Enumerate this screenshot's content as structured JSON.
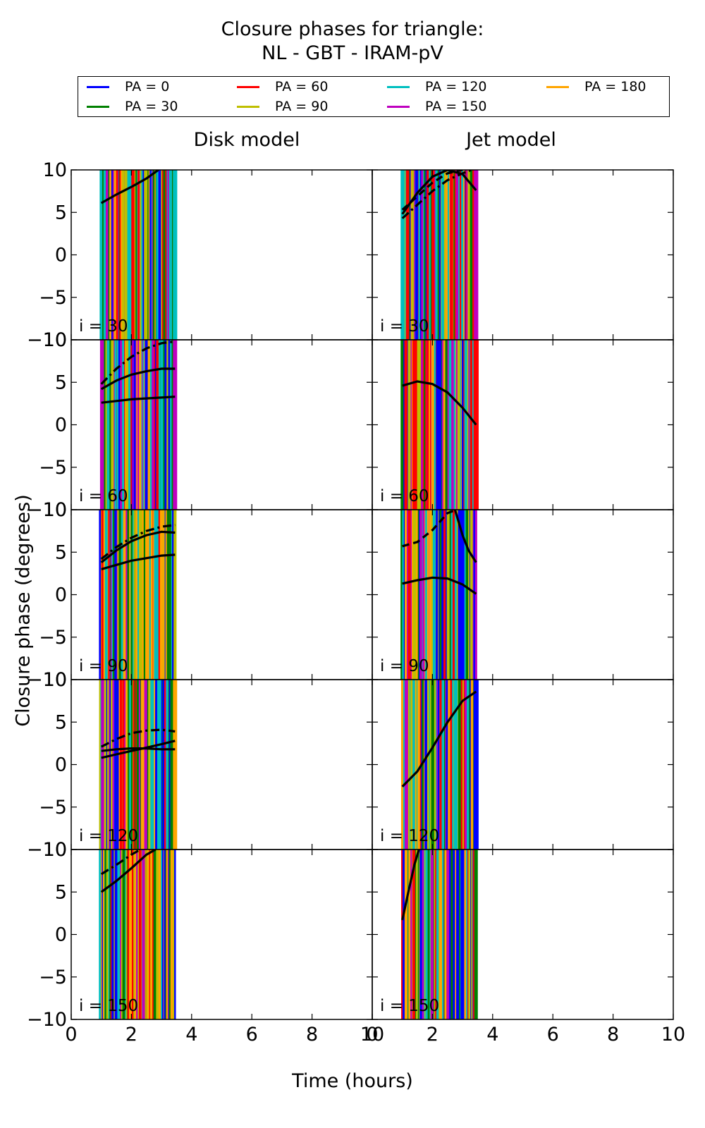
{
  "title_line1": "Closure phases for triangle:",
  "title_line2": "NL - GBT - IRAM-pV",
  "columns": [
    "Disk model",
    "Jet model"
  ],
  "xlabel": "Time (hours)",
  "ylabel": "Closure phase (degrees)",
  "legend": [
    {
      "label": "PA = 0",
      "color": "#0000ff"
    },
    {
      "label": "PA = 30",
      "color": "#008000"
    },
    {
      "label": "PA = 60",
      "color": "#ff0000"
    },
    {
      "label": "PA = 90",
      "color": "#bfbf00"
    },
    {
      "label": "PA = 120",
      "color": "#00bfbf"
    },
    {
      "label": "PA = 150",
      "color": "#bf00bf"
    },
    {
      "label": "PA = 180",
      "color": "#ffa500"
    }
  ],
  "chart_data": {
    "type": "line",
    "grid": false,
    "legend_position": "top",
    "xlim": [
      0,
      10
    ],
    "ylim": [
      -10,
      10
    ],
    "x_ticks": [
      0,
      2,
      4,
      6,
      8,
      10
    ],
    "y_ticks": [
      -10,
      -5,
      0,
      5,
      10
    ],
    "x_tick_labels": [
      "0",
      "2",
      "4",
      "6",
      "8",
      "10"
    ],
    "y_tick_labels": [
      "−10",
      "−5",
      "0",
      "5",
      "10"
    ],
    "time_range_hours": [
      1.0,
      3.45
    ],
    "rows": [
      "i = 30",
      "i = 60",
      "i = 90",
      "i = 120",
      "i = 150"
    ],
    "panels": [
      {
        "column": "Disk model",
        "row": "i = 30",
        "series": [
          {
            "style": "solid",
            "x": [
              1.0,
              1.5,
              2.0,
              2.5,
              2.9
            ],
            "y": [
              6.1,
              7.1,
              8.0,
              9.0,
              10.0
            ]
          }
        ]
      },
      {
        "column": "Jet model",
        "row": "i = 30",
        "series": [
          {
            "style": "solid",
            "x": [
              1.0,
              1.5,
              2.0,
              2.5,
              3.0,
              3.45
            ],
            "y": [
              4.8,
              7.3,
              9.2,
              10.0,
              9.5,
              7.6
            ]
          },
          {
            "style": "dashdot",
            "x": [
              1.0,
              1.5,
              2.0,
              2.5,
              3.0,
              3.3
            ],
            "y": [
              4.3,
              5.9,
              7.5,
              8.8,
              9.6,
              10.0
            ]
          },
          {
            "style": "dashed",
            "x": [
              1.0,
              1.5,
              2.0,
              2.5,
              3.0
            ],
            "y": [
              5.3,
              6.9,
              8.5,
              9.6,
              10.0
            ]
          }
        ]
      },
      {
        "column": "Disk model",
        "row": "i = 60",
        "series": [
          {
            "style": "solid",
            "x": [
              1.0,
              1.5,
              2.0,
              2.5,
              3.0,
              3.45
            ],
            "y": [
              2.6,
              2.8,
              3.0,
              3.1,
              3.2,
              3.3
            ]
          },
          {
            "style": "solid",
            "x": [
              1.0,
              1.5,
              2.0,
              2.5,
              3.0,
              3.45
            ],
            "y": [
              4.2,
              5.2,
              5.9,
              6.3,
              6.6,
              6.6
            ]
          },
          {
            "style": "dashdot",
            "x": [
              1.0,
              1.5,
              2.0,
              2.5,
              3.0,
              3.45
            ],
            "y": [
              4.8,
              6.6,
              8.0,
              9.0,
              9.6,
              9.8
            ]
          }
        ]
      },
      {
        "column": "Jet model",
        "row": "i = 60",
        "series": [
          {
            "style": "solid",
            "x": [
              1.0,
              1.5,
              2.0,
              2.5,
              3.0,
              3.45
            ],
            "y": [
              4.6,
              5.1,
              4.8,
              3.8,
              2.0,
              0.0
            ]
          }
        ]
      },
      {
        "column": "Disk model",
        "row": "i = 90",
        "series": [
          {
            "style": "solid",
            "x": [
              1.0,
              1.5,
              2.0,
              2.5,
              3.0,
              3.45
            ],
            "y": [
              3.0,
              3.5,
              4.0,
              4.3,
              4.6,
              4.7
            ]
          },
          {
            "style": "solid",
            "x": [
              1.0,
              1.5,
              2.0,
              2.5,
              3.0,
              3.45
            ],
            "y": [
              3.8,
              5.2,
              6.3,
              7.0,
              7.4,
              7.3
            ]
          },
          {
            "style": "dashdot",
            "x": [
              1.0,
              1.5,
              2.0,
              2.5,
              3.0,
              3.45
            ],
            "y": [
              4.2,
              5.6,
              6.7,
              7.5,
              8.0,
              8.2
            ]
          }
        ]
      },
      {
        "column": "Jet model",
        "row": "i = 90",
        "series": [
          {
            "style": "solid",
            "x": [
              1.0,
              1.5,
              2.0,
              2.5,
              3.0,
              3.45
            ],
            "y": [
              1.3,
              1.7,
              2.0,
              1.9,
              1.2,
              0.1
            ]
          },
          {
            "style": "dashed",
            "x": [
              1.0,
              1.5,
              2.0,
              2.5,
              2.8
            ],
            "y": [
              5.7,
              6.2,
              7.6,
              9.6,
              10.0
            ]
          },
          {
            "style": "solid",
            "x": [
              2.75,
              3.0,
              3.2,
              3.45
            ],
            "y": [
              10.0,
              7.0,
              5.2,
              3.8
            ]
          }
        ]
      },
      {
        "column": "Disk model",
        "row": "i = 120",
        "series": [
          {
            "style": "solid",
            "x": [
              1.0,
              1.5,
              2.0,
              2.5,
              3.0,
              3.45
            ],
            "y": [
              0.8,
              1.2,
              1.6,
              2.0,
              2.4,
              2.8
            ]
          },
          {
            "style": "solid",
            "x": [
              1.0,
              1.5,
              2.0,
              2.5,
              3.0,
              3.45
            ],
            "y": [
              1.6,
              1.8,
              1.9,
              1.9,
              1.8,
              1.8
            ]
          },
          {
            "style": "dashdot",
            "x": [
              1.0,
              1.5,
              2.0,
              2.5,
              3.0,
              3.45
            ],
            "y": [
              2.1,
              3.0,
              3.7,
              4.0,
              4.1,
              3.9
            ]
          }
        ]
      },
      {
        "column": "Jet model",
        "row": "i = 120",
        "series": [
          {
            "style": "solid",
            "x": [
              1.0,
              1.5,
              2.0,
              2.5,
              3.0,
              3.45
            ],
            "y": [
              -2.6,
              -0.8,
              2.0,
              5.0,
              7.5,
              8.6
            ]
          }
        ]
      },
      {
        "column": "Disk model",
        "row": "i = 150",
        "series": [
          {
            "style": "solid",
            "x": [
              1.0,
              1.5,
              2.0,
              2.5,
              2.8
            ],
            "y": [
              5.0,
              6.3,
              7.8,
              9.4,
              10.0
            ]
          },
          {
            "style": "dashdot",
            "x": [
              1.0,
              1.5,
              2.0,
              2.3
            ],
            "y": [
              7.1,
              8.2,
              9.4,
              10.0
            ]
          }
        ]
      },
      {
        "column": "Jet model",
        "row": "i = 150",
        "series": [
          {
            "style": "solid",
            "x": [
              1.0,
              1.2,
              1.4,
              1.55
            ],
            "y": [
              1.7,
              5.0,
              8.2,
              10.0
            ]
          }
        ]
      }
    ]
  }
}
